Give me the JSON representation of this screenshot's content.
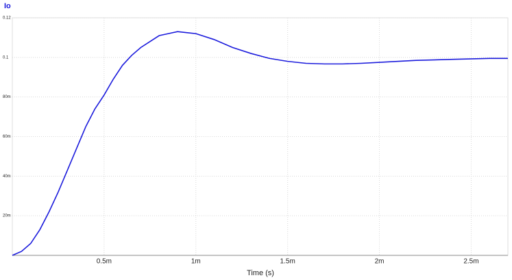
{
  "chart_data": {
    "type": "line",
    "title": "Io",
    "xlabel": "Time (s)",
    "x": [
      0,
      5e-05,
      0.0001,
      0.00015,
      0.0002,
      0.00025,
      0.0003,
      0.00035,
      0.0004,
      0.00045,
      0.0005,
      0.00055,
      0.0006,
      0.00065,
      0.0007,
      0.00075,
      0.0008,
      0.00085,
      0.0009,
      0.00095,
      0.001,
      0.0011,
      0.0012,
      0.0013,
      0.0014,
      0.0015,
      0.0016,
      0.0017,
      0.0018,
      0.0019,
      0.002,
      0.0022,
      0.0024,
      0.0026,
      0.0027
    ],
    "series": [
      {
        "name": "Io",
        "color": "#1a1adc",
        "values": [
          0,
          0.002,
          0.006,
          0.013,
          0.022,
          0.032,
          0.043,
          0.054,
          0.065,
          0.074,
          0.081,
          0.089,
          0.096,
          0.101,
          0.105,
          0.108,
          0.111,
          0.112,
          0.113,
          0.1125,
          0.112,
          0.109,
          0.105,
          0.102,
          0.0995,
          0.098,
          0.097,
          0.0967,
          0.0967,
          0.097,
          0.0975,
          0.0985,
          0.099,
          0.0995,
          0.0995
        ]
      }
    ],
    "xlim": [
      0,
      0.0027
    ],
    "ylim": [
      0,
      0.12
    ],
    "xticks": [
      {
        "value": 0.0005,
        "label": "0.5m"
      },
      {
        "value": 0.001,
        "label": "1m"
      },
      {
        "value": 0.0015,
        "label": "1.5m"
      },
      {
        "value": 0.002,
        "label": "2m"
      },
      {
        "value": 0.0025,
        "label": "2.5m"
      }
    ],
    "yticks": [
      {
        "value": 0.02,
        "label": "20m"
      },
      {
        "value": 0.04,
        "label": "40m"
      },
      {
        "value": 0.06,
        "label": "60m"
      },
      {
        "value": 0.08,
        "label": "80m"
      },
      0.1,
      0.12
    ],
    "grid": true
  }
}
